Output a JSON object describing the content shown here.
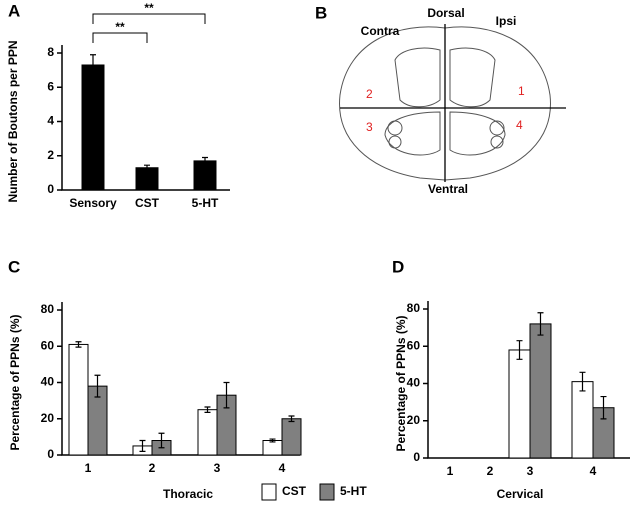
{
  "chart_data": [
    {
      "type": "bar",
      "panel": "A",
      "y_label": "Number of Boutons per PPN",
      "categories": [
        "Sensory",
        "CST",
        "5-HT"
      ],
      "series": [
        {
          "color": "#000000",
          "values": [
            7.3,
            1.3,
            1.7
          ],
          "errors": [
            0.6,
            0.15,
            0.2
          ]
        }
      ],
      "annotations": [
        "**",
        "**"
      ],
      "ylim": [
        0,
        8
      ],
      "yticks": [
        0,
        2,
        4,
        6,
        8
      ]
    },
    {
      "type": "bar",
      "panel": "C",
      "y_label": "Percentage of PPNs (%)",
      "x_label": "Thoracic",
      "categories": [
        "1",
        "2",
        "3",
        "4"
      ],
      "series": [
        {
          "name": "CST",
          "color": "#ffffff",
          "values": [
            61,
            5,
            25,
            8
          ],
          "errors": [
            1.5,
            3,
            1.5,
            0.8
          ]
        },
        {
          "name": "5-HT",
          "color": "#808080",
          "values": [
            38,
            8,
            33,
            20
          ],
          "errors": [
            6,
            4,
            7,
            1.5
          ]
        }
      ],
      "ylim": [
        0,
        80
      ],
      "yticks": [
        0,
        20,
        40,
        60,
        80
      ]
    },
    {
      "type": "bar",
      "panel": "D",
      "y_label": "Percentage of PPNs (%)",
      "x_label": "Cervical",
      "categories": [
        "1",
        "2",
        "3",
        "4"
      ],
      "series": [
        {
          "color": "#ffffff",
          "values": [
            null,
            null,
            58,
            41
          ],
          "errors": [
            null,
            null,
            5,
            5
          ]
        },
        {
          "color": "#808080",
          "values": [
            null,
            null,
            72,
            27
          ],
          "errors": [
            null,
            null,
            6,
            6
          ]
        }
      ],
      "ylim": [
        0,
        80
      ],
      "yticks": [
        0,
        20,
        40,
        60,
        80
      ]
    }
  ],
  "diagram": {
    "panel": "B",
    "labels": {
      "contra": "Contra",
      "dorsal": "Dorsal",
      "ipsi": "Ipsi",
      "ventral": "Ventral"
    },
    "regions": [
      "1",
      "2",
      "3",
      "4"
    ]
  }
}
